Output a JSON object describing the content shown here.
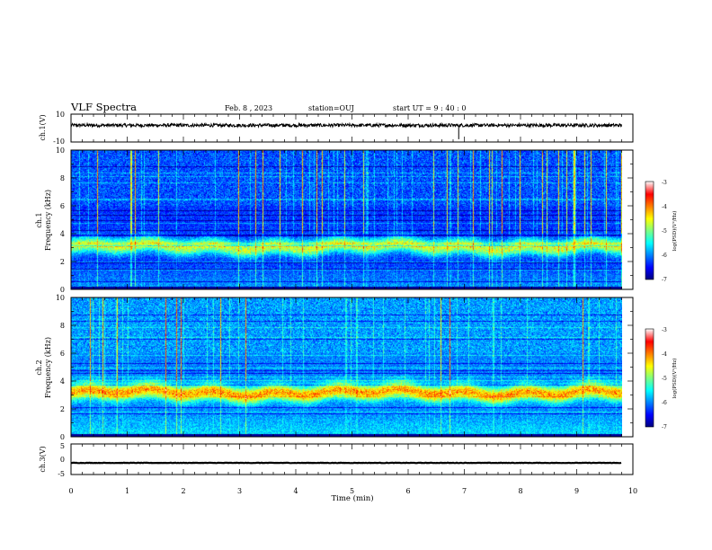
{
  "header": {
    "title": "VLF Spectra",
    "date": "Feb. 8 , 2023",
    "station": "station=OUJ",
    "start": "start UT = 9 : 40 : 0"
  },
  "chart_data": [
    {
      "type": "line",
      "panel": "ch.1 waveform",
      "ylabel": "ch.1(V)",
      "ylim": [
        -10,
        10
      ],
      "y_ticks": [
        "10",
        "-10"
      ],
      "xlim": [
        0,
        10
      ],
      "series": [
        {
          "values_desc": [],
          "level": 2,
          "noise": 0.6
        }
      ],
      "color": "#000000"
    },
    {
      "type": "heatmap",
      "panel": "ch.1 spectrogram",
      "ylabel": "ch.1\nFrequency (kHz)",
      "ylim": [
        0,
        10
      ],
      "y_ticks": [
        "0",
        "2",
        "4",
        "6",
        "8",
        "10"
      ],
      "xlim": [
        0,
        9.8
      ],
      "colorbar": {
        "label": "log(PSD)(V²/Hz)",
        "range": [
          -7,
          -3
        ],
        "ticks": [
          "-3",
          "-4",
          "-5",
          "-6",
          "-7"
        ]
      },
      "band_center_khz": 3.1,
      "band_peak_logpsd": -4.6,
      "background_logpsd": -6.3
    },
    {
      "type": "heatmap",
      "panel": "ch.2 spectrogram",
      "ylabel": "ch.2\nFrequency (kHz)",
      "ylim": [
        0,
        10
      ],
      "y_ticks": [
        "0",
        "2",
        "4",
        "6",
        "8",
        "10"
      ],
      "xlim": [
        0,
        9.8
      ],
      "colorbar": {
        "label": "log(PSD)(V²/Hz)",
        "range": [
          -7,
          -3
        ],
        "ticks": [
          "-3",
          "-4",
          "-5",
          "-6",
          "-7"
        ]
      },
      "band_center_khz": 3.2,
      "band_peak_logpsd": -4.0,
      "background_logpsd": -6.0
    },
    {
      "type": "line",
      "panel": "ch.3 waveform",
      "ylabel": "ch.3(V)",
      "ylim": [
        -5,
        5
      ],
      "y_ticks": [
        "5",
        "0",
        "-5"
      ],
      "xlim": [
        0,
        10
      ],
      "series": [
        {
          "level": -1.2,
          "noise": 0.15
        }
      ],
      "color": "#000000",
      "xlabel": "Time (min)",
      "x_ticks": [
        "0",
        "1",
        "2",
        "3",
        "4",
        "5",
        "6",
        "7",
        "8",
        "9",
        "10"
      ]
    }
  ]
}
